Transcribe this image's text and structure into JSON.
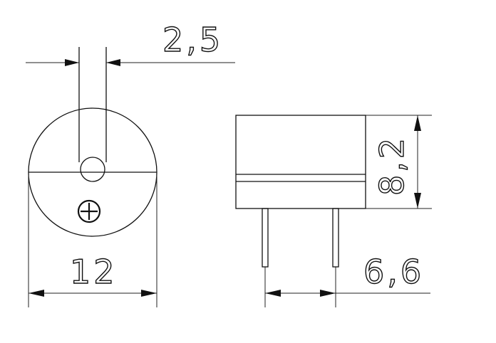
{
  "dimensions": {
    "lead_width": "2,5",
    "diameter": "12",
    "height": "8,2",
    "pin_spacing": "6,6"
  },
  "colors": {
    "line": "#111111",
    "background": "#ffffff"
  },
  "icons": {
    "polarity_mark": "plus-in-circle-icon"
  }
}
